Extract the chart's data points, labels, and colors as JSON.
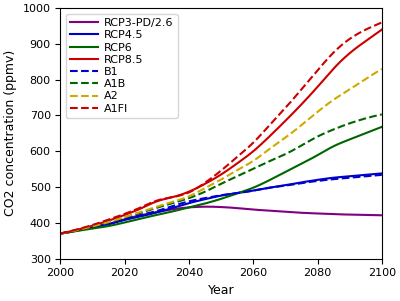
{
  "xlabel": "Year",
  "ylabel": "CO2 concentration (ppmv)",
  "xlim": [
    2000,
    2100
  ],
  "ylim": [
    300,
    1000
  ],
  "xticks": [
    2000,
    2020,
    2040,
    2060,
    2080,
    2100
  ],
  "yticks": [
    300,
    400,
    500,
    600,
    700,
    800,
    900,
    1000
  ],
  "series": [
    {
      "label": "RCP3-PD/2.6",
      "color": "#800080",
      "linestyle": "-",
      "linewidth": 1.5,
      "xvals": [
        2000,
        2005,
        2010,
        2015,
        2020,
        2025,
        2030,
        2035,
        2040,
        2045,
        2050,
        2055,
        2060,
        2065,
        2070,
        2075,
        2080,
        2085,
        2090,
        2095,
        2100
      ],
      "yvals": [
        370,
        378,
        388,
        397,
        410,
        421,
        430,
        438,
        443,
        445,
        444,
        441,
        437,
        434,
        431,
        428,
        426,
        424,
        423,
        422,
        421
      ]
    },
    {
      "label": "RCP4.5",
      "color": "#0000cc",
      "linestyle": "-",
      "linewidth": 1.5,
      "xvals": [
        2000,
        2005,
        2010,
        2015,
        2020,
        2025,
        2030,
        2035,
        2040,
        2045,
        2050,
        2055,
        2060,
        2065,
        2070,
        2075,
        2080,
        2085,
        2090,
        2095,
        2100
      ],
      "yvals": [
        370,
        378,
        387,
        396,
        408,
        418,
        429,
        442,
        455,
        466,
        476,
        483,
        490,
        498,
        505,
        513,
        520,
        526,
        530,
        534,
        538
      ]
    },
    {
      "label": "RCP6",
      "color": "#006600",
      "linestyle": "-",
      "linewidth": 1.5,
      "xvals": [
        2000,
        2005,
        2010,
        2015,
        2020,
        2025,
        2030,
        2035,
        2040,
        2045,
        2050,
        2055,
        2060,
        2065,
        2070,
        2075,
        2080,
        2085,
        2090,
        2095,
        2100
      ],
      "yvals": [
        370,
        377,
        384,
        391,
        401,
        412,
        422,
        432,
        443,
        454,
        467,
        482,
        498,
        519,
        542,
        565,
        589,
        614,
        633,
        651,
        668
      ]
    },
    {
      "label": "RCP8.5",
      "color": "#cc0000",
      "linestyle": "-",
      "linewidth": 1.5,
      "xvals": [
        2000,
        2005,
        2010,
        2015,
        2020,
        2025,
        2030,
        2035,
        2040,
        2045,
        2050,
        2055,
        2060,
        2065,
        2070,
        2075,
        2080,
        2085,
        2090,
        2095,
        2100
      ],
      "yvals": [
        370,
        380,
        392,
        406,
        422,
        440,
        460,
        472,
        487,
        509,
        535,
        566,
        600,
        641,
        685,
        731,
        780,
        831,
        874,
        908,
        940
      ]
    },
    {
      "label": "B1",
      "color": "#0000cc",
      "linestyle": "--",
      "linewidth": 1.5,
      "xvals": [
        2000,
        2005,
        2010,
        2015,
        2020,
        2025,
        2030,
        2035,
        2040,
        2045,
        2050,
        2055,
        2060,
        2065,
        2070,
        2075,
        2080,
        2085,
        2090,
        2095,
        2100
      ],
      "yvals": [
        370,
        379,
        389,
        399,
        411,
        422,
        433,
        447,
        460,
        469,
        477,
        483,
        490,
        498,
        504,
        511,
        517,
        522,
        526,
        530,
        534
      ]
    },
    {
      "label": "A1B",
      "color": "#006600",
      "linestyle": "--",
      "linewidth": 1.5,
      "xvals": [
        2000,
        2005,
        2010,
        2015,
        2020,
        2025,
        2030,
        2035,
        2040,
        2045,
        2050,
        2055,
        2060,
        2065,
        2070,
        2075,
        2080,
        2085,
        2090,
        2095,
        2100
      ],
      "yvals": [
        370,
        379,
        390,
        402,
        415,
        428,
        442,
        455,
        469,
        487,
        509,
        530,
        551,
        572,
        592,
        616,
        641,
        661,
        678,
        692,
        703
      ]
    },
    {
      "label": "A2",
      "color": "#ccaa00",
      "linestyle": "--",
      "linewidth": 1.5,
      "xvals": [
        2000,
        2005,
        2010,
        2015,
        2020,
        2025,
        2030,
        2035,
        2040,
        2045,
        2050,
        2055,
        2060,
        2065,
        2070,
        2075,
        2080,
        2085,
        2090,
        2095,
        2100
      ],
      "yvals": [
        370,
        379,
        390,
        402,
        416,
        430,
        445,
        459,
        474,
        497,
        521,
        547,
        573,
        606,
        638,
        673,
        710,
        744,
        773,
        802,
        830
      ]
    },
    {
      "label": "A1FI",
      "color": "#cc0000",
      "linestyle": "--",
      "linewidth": 1.5,
      "xvals": [
        2000,
        2005,
        2010,
        2015,
        2020,
        2025,
        2030,
        2035,
        2040,
        2045,
        2050,
        2055,
        2060,
        2065,
        2070,
        2075,
        2080,
        2085,
        2090,
        2095,
        2100
      ],
      "yvals": [
        370,
        381,
        394,
        409,
        425,
        443,
        462,
        472,
        485,
        512,
        546,
        584,
        624,
        672,
        721,
        773,
        826,
        876,
        914,
        940,
        960
      ]
    }
  ],
  "background_color": "#ffffff",
  "legend_fontsize": 8,
  "tick_fontsize": 8,
  "label_fontsize": 9
}
